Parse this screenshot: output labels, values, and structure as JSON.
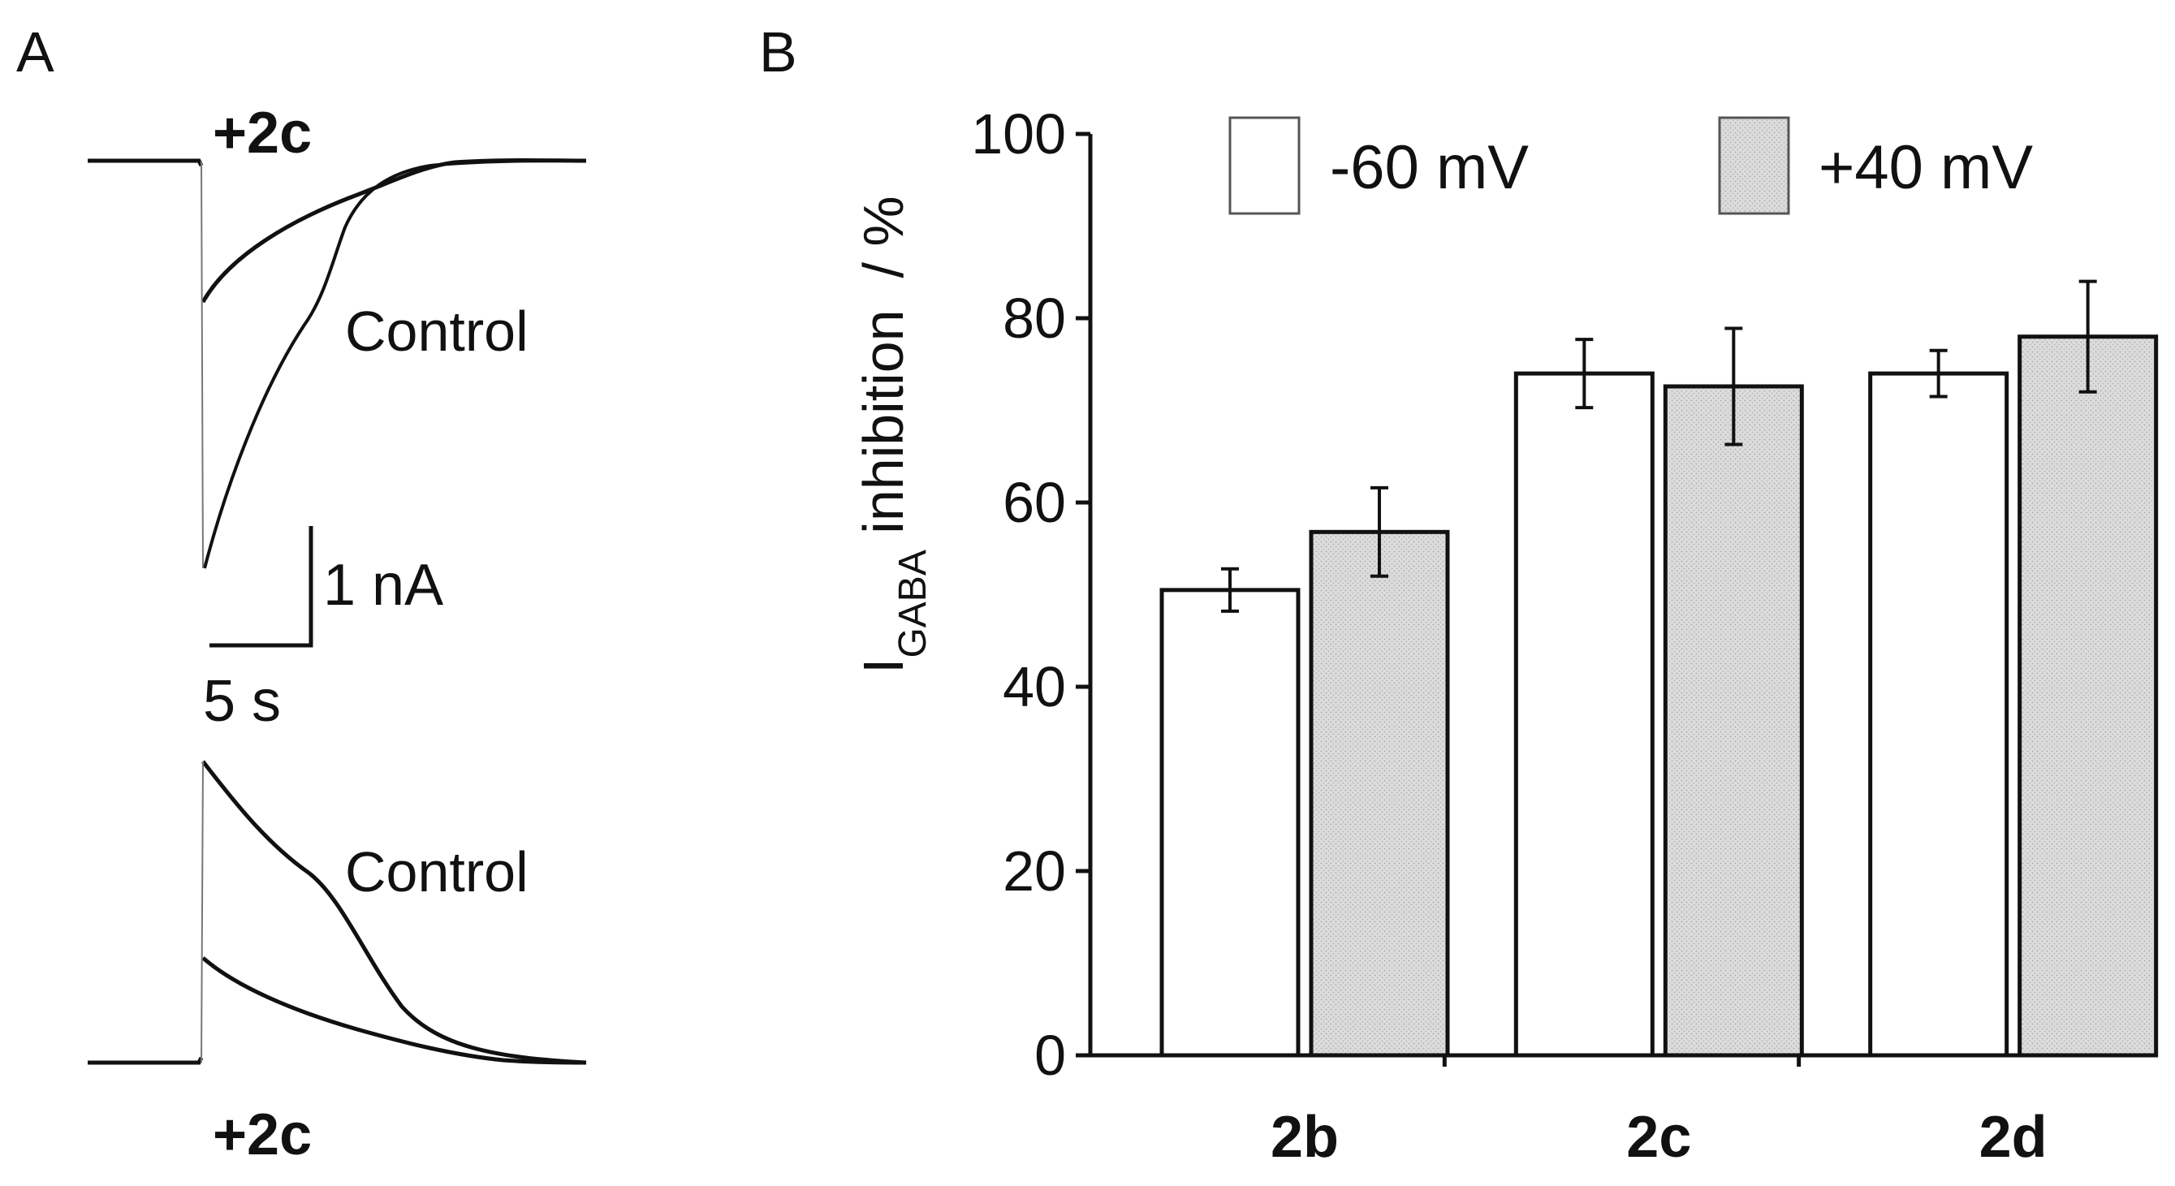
{
  "panel_a": {
    "panel_label": "A",
    "top_label": "+2c",
    "top_control_label": "Control",
    "bottom_control_label": "Control",
    "bottom_label": "+2c",
    "scale_current_label": "1 nA",
    "scale_time_label": "5 s"
  },
  "chart_data": {
    "type": "bar",
    "panel_label": "B",
    "categories": [
      "2b",
      "2c",
      "2d"
    ],
    "series": [
      {
        "name": "-60 mV",
        "color": "#ffffff",
        "values": [
          50.5,
          74,
          74
        ],
        "errors": [
          2.3,
          3.7,
          2.5
        ]
      },
      {
        "name": "+40 mV",
        "color": "#d8d8d8",
        "values": [
          56.8,
          72.6,
          78
        ],
        "errors": [
          4.8,
          6.3,
          6.0
        ]
      }
    ],
    "ylabel_main": "I",
    "ylabel_sub": "GABA",
    "ylabel_rest": " inhibition  / %",
    "ylim": [
      0,
      100
    ],
    "yticks": [
      0,
      20,
      40,
      60,
      80,
      100
    ],
    "legend_position": "top"
  }
}
